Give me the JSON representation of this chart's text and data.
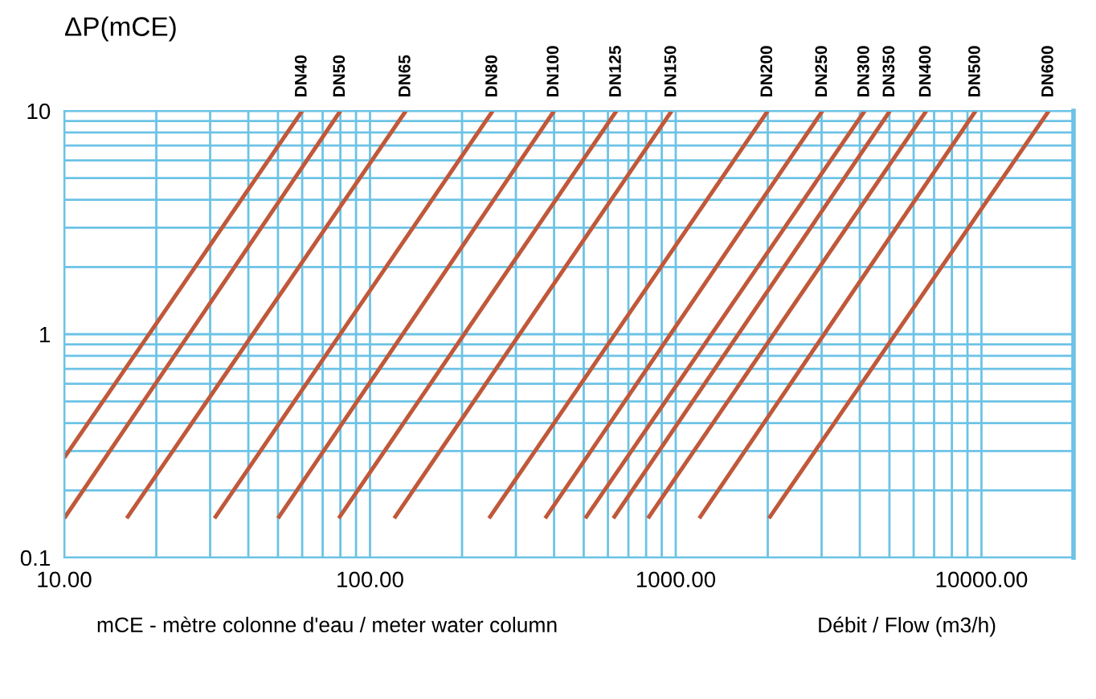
{
  "chart_data": {
    "type": "line",
    "ylabel": "ΔP(mCE)",
    "xlabel": "Débit / Flow (m3/h)",
    "annotations": [
      "mCE - mètre colonne d'eau / meter water column"
    ],
    "log": "xy",
    "grid": true,
    "legend": false,
    "marker": "none",
    "line_style": "solid",
    "xlim": [
      10,
      20000
    ],
    "ylim": [
      0.1,
      10
    ],
    "xticks": [
      {
        "value": 10,
        "label": "10.00"
      },
      {
        "value": 100,
        "label": "100.00"
      },
      {
        "value": 1000,
        "label": "1000.00"
      },
      {
        "value": 10000,
        "label": "10000.00"
      }
    ],
    "yticks": [
      0.1,
      1,
      10
    ],
    "series": [
      {
        "name": "DN40",
        "color": "#c0583a",
        "x": [
          10,
          60
        ],
        "values": [
          0.28,
          10
        ]
      },
      {
        "name": "DN50",
        "color": "#c0583a",
        "x": [
          10,
          80
        ],
        "values": [
          0.15,
          10
        ]
      },
      {
        "name": "DN65",
        "color": "#c0583a",
        "x": [
          16,
          131
        ],
        "values": [
          0.15,
          10
        ]
      },
      {
        "name": "DN80",
        "color": "#c0583a",
        "x": [
          31,
          252
        ],
        "values": [
          0.15,
          10
        ]
      },
      {
        "name": "DN100",
        "color": "#c0583a",
        "x": [
          50,
          400
        ],
        "values": [
          0.15,
          10
        ]
      },
      {
        "name": "DN125",
        "color": "#c0583a",
        "x": [
          79,
          640
        ],
        "values": [
          0.15,
          10
        ]
      },
      {
        "name": "DN150",
        "color": "#c0583a",
        "x": [
          120,
          970
        ],
        "values": [
          0.15,
          10
        ]
      },
      {
        "name": "DN200",
        "color": "#c0583a",
        "x": [
          245,
          2000
        ],
        "values": [
          0.15,
          10
        ]
      },
      {
        "name": "DN250",
        "color": "#c0583a",
        "x": [
          374,
          3020
        ],
        "values": [
          0.15,
          10
        ]
      },
      {
        "name": "DN300",
        "color": "#c0583a",
        "x": [
          506,
          4150
        ],
        "values": [
          0.15,
          10
        ]
      },
      {
        "name": "DN350",
        "color": "#c0583a",
        "x": [
          625,
          5020
        ],
        "values": [
          0.15,
          10
        ]
      },
      {
        "name": "DN400",
        "color": "#c0583a",
        "x": [
          811,
          6600
        ],
        "values": [
          0.15,
          10
        ]
      },
      {
        "name": "DN500",
        "color": "#c0583a",
        "x": [
          1194,
          9570
        ],
        "values": [
          0.15,
          10
        ]
      },
      {
        "name": "DN600",
        "color": "#c0583a",
        "x": [
          2018,
          16600
        ],
        "values": [
          0.15,
          10
        ]
      }
    ]
  }
}
